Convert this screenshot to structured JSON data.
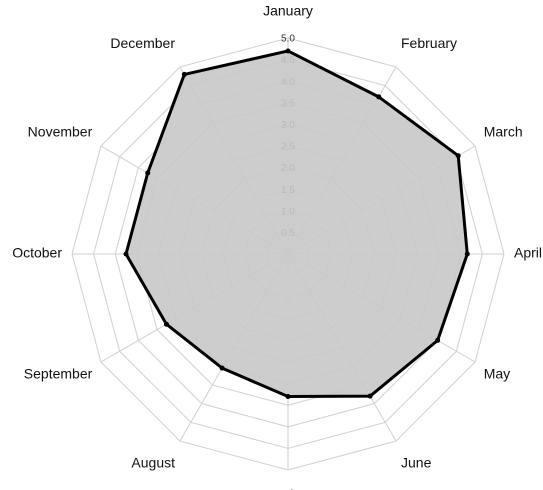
{
  "chart_data": {
    "type": "radar",
    "categories": [
      "January",
      "February",
      "March",
      "April",
      "May",
      "June",
      "July",
      "August",
      "September",
      "October",
      "November",
      "December"
    ],
    "values": [
      4.7,
      4.2,
      4.55,
      4.15,
      4.0,
      3.8,
      3.3,
      3.05,
      3.25,
      3.75,
      3.75,
      4.8
    ],
    "color": "#000000",
    "fill": "#c8c8c8",
    "rlim": [
      0,
      5
    ],
    "rticks": [
      0.5,
      {
        "value": 1,
        "label": "1.0"
      },
      1.5,
      {
        "value": 2,
        "label": "2.0"
      },
      2.5,
      {
        "value": 3,
        "label": "3.0"
      },
      3.5,
      {
        "value": 4,
        "label": "4.0"
      },
      4.5,
      {
        "value": 5,
        "label": "5.0"
      }
    ],
    "grid": true
  }
}
